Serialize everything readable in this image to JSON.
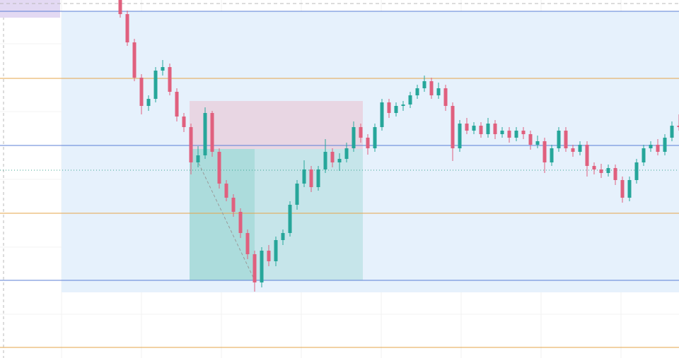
{
  "chart_data": {
    "type": "candlestick",
    "xlim": [
      -17,
      79
    ],
    "ylim": [
      0,
      507
    ],
    "xgrid": [
      -8.3,
      3.0,
      14.3,
      25.6,
      36.9,
      48.2,
      59.5,
      70.8
    ],
    "ygrid": [
      445,
      349,
      253,
      157,
      62
    ],
    "up_color": "#26a69a",
    "down_color": "#e0607e",
    "x": [
      0,
      1,
      2,
      3,
      4,
      5,
      6,
      7,
      8,
      9,
      10,
      11,
      12,
      13,
      14,
      15,
      16,
      17,
      18,
      19,
      20,
      21,
      22,
      23,
      24,
      25,
      26,
      27,
      28,
      29,
      30,
      31,
      32,
      33,
      34,
      35,
      36,
      37,
      38,
      39,
      40,
      41,
      42,
      43,
      44,
      45,
      46,
      47,
      48,
      49,
      50,
      51,
      52,
      53,
      54,
      55,
      56,
      57,
      58,
      59,
      60,
      61,
      62,
      63,
      64,
      65,
      66,
      67,
      68,
      69,
      70,
      71,
      72,
      73,
      74,
      75,
      76,
      77,
      78,
      79
    ],
    "open": [
      507,
      487,
      447,
      397,
      357,
      367,
      407,
      412,
      377,
      342,
      327,
      277,
      287,
      347,
      292,
      247,
      227,
      207,
      177,
      147,
      107,
      152,
      137,
      167,
      177,
      217,
      247,
      267,
      242,
      267,
      292,
      277,
      282,
      297,
      327,
      312,
      297,
      327,
      362,
      347,
      357,
      359,
      372,
      382,
      392,
      372,
      382,
      357,
      297,
      332,
      322,
      329,
      317,
      332,
      317,
      322,
      312,
      322,
      317,
      302,
      307,
      277,
      297,
      322,
      297,
      292,
      302,
      272,
      267,
      262,
      269,
      252,
      227,
      252,
      277,
      297,
      302,
      292,
      312,
      329
    ],
    "high": [
      510,
      492,
      452,
      402,
      372,
      412,
      422,
      417,
      382,
      347,
      332,
      300,
      355,
      350,
      297,
      252,
      232,
      212,
      182,
      152,
      157,
      160,
      172,
      182,
      222,
      252,
      280,
      272,
      272,
      310,
      297,
      290,
      305,
      335,
      332,
      317,
      332,
      367,
      367,
      362,
      364,
      377,
      387,
      400,
      397,
      390,
      387,
      362,
      337,
      340,
      334,
      334,
      340,
      337,
      327,
      327,
      327,
      327,
      322,
      315,
      312,
      302,
      327,
      327,
      302,
      307,
      307,
      277,
      275,
      274,
      274,
      257,
      257,
      282,
      302,
      307,
      310,
      317,
      335,
      345
    ],
    "low": [
      482,
      442,
      392,
      345,
      350,
      362,
      400,
      372,
      335,
      320,
      260,
      270,
      282,
      285,
      240,
      222,
      200,
      170,
      140,
      94,
      100,
      130,
      130,
      160,
      172,
      210,
      242,
      235,
      237,
      262,
      270,
      265,
      277,
      292,
      305,
      288,
      292,
      322,
      340,
      342,
      350,
      354,
      367,
      377,
      367,
      367,
      350,
      279,
      292,
      317,
      317,
      312,
      312,
      310,
      312,
      305,
      307,
      310,
      295,
      297,
      262,
      272,
      292,
      292,
      285,
      287,
      257,
      260,
      255,
      257,
      245,
      220,
      222,
      247,
      272,
      292,
      287,
      287,
      307,
      322
    ],
    "close": [
      487,
      447,
      397,
      357,
      367,
      407,
      412,
      377,
      342,
      327,
      277,
      287,
      347,
      292,
      247,
      227,
      207,
      177,
      147,
      107,
      152,
      137,
      167,
      177,
      217,
      247,
      267,
      242,
      267,
      292,
      277,
      282,
      297,
      327,
      312,
      297,
      327,
      362,
      347,
      357,
      359,
      372,
      382,
      392,
      372,
      382,
      357,
      297,
      332,
      322,
      329,
      317,
      332,
      317,
      322,
      312,
      322,
      317,
      302,
      307,
      277,
      297,
      322,
      297,
      292,
      302,
      272,
      267,
      262,
      269,
      252,
      227,
      252,
      277,
      297,
      302,
      292,
      312,
      329,
      327
    ],
    "levels": [
      {
        "value": 491,
        "color": "#5b7fd6",
        "style": "solid"
      },
      {
        "value": 301,
        "color": "#5b7fd6",
        "style": "solid"
      },
      {
        "value": 110,
        "color": "#5b7fd6",
        "style": "solid"
      },
      {
        "value": 396,
        "color": "#e6a54a",
        "style": "solid"
      },
      {
        "value": 205,
        "color": "#e6a54a",
        "style": "solid"
      },
      {
        "value": 15,
        "color": "#e6a54a",
        "style": "solid"
      },
      {
        "value": 266,
        "color": "#3aa38f",
        "style": "dotted"
      },
      {
        "value": 502,
        "color": "#b8b8b8",
        "style": "dashed"
      }
    ],
    "zones": [
      {
        "x": [
          -8.3,
          79
        ],
        "y": [
          93,
          491
        ],
        "color": "#e6f1fc"
      },
      {
        "x": [
          -17,
          -8.5
        ],
        "y": [
          482,
          507
        ],
        "color": "#e3d9f3"
      },
      {
        "x": [
          9.8,
          34.3
        ],
        "y": [
          296,
          364
        ],
        "color": "#e8d6e3"
      },
      {
        "x": [
          9.8,
          34.3
        ],
        "y": [
          110,
          296
        ],
        "color": "#c6e5ea"
      },
      {
        "x": [
          9.8,
          19.0
        ],
        "y": [
          110,
          296
        ],
        "color": "#acdcdc"
      }
    ],
    "trend": {
      "x": [
        10.8,
        19.0
      ],
      "y": [
        282,
        110
      ],
      "color": "#9a9a9a"
    }
  }
}
